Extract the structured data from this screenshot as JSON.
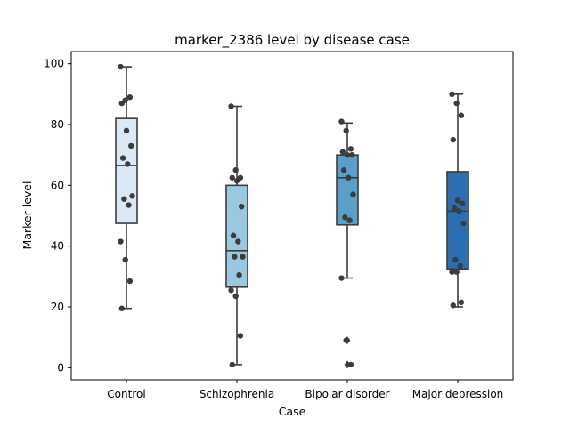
{
  "chart_data": {
    "type": "box",
    "title": "marker_2386 level by disease case",
    "xlabel": "Case",
    "ylabel": "Marker level",
    "ylim": [
      -4,
      104
    ],
    "yticks": [
      0,
      20,
      40,
      60,
      80,
      100
    ],
    "grid": false,
    "categories": [
      "Control",
      "Schizophrenia",
      "Bipolar disorder",
      "Major depression"
    ],
    "box_colors": [
      "#dbe9f6",
      "#9ac8e0",
      "#5b9ec9",
      "#2a6fb0"
    ],
    "boxes": [
      {
        "category": "Control",
        "whisker_low": 19.5,
        "q1": 47.5,
        "median": 66.5,
        "q3": 82,
        "whisker_high": 99,
        "outliers": []
      },
      {
        "category": "Schizophrenia",
        "whisker_low": 1,
        "q1": 26.5,
        "median": 38.5,
        "q3": 60,
        "whisker_high": 86,
        "outliers": []
      },
      {
        "category": "Bipolar disorder",
        "whisker_low": 29.5,
        "q1": 47,
        "median": 62.5,
        "q3": 70,
        "whisker_high": 80.5,
        "outliers": [
          9,
          1
        ]
      },
      {
        "category": "Major depression",
        "whisker_low": 20,
        "q1": 32.5,
        "median": 51.5,
        "q3": 64.5,
        "whisker_high": 90,
        "outliers": []
      }
    ],
    "points": [
      {
        "category": "Control",
        "values": [
          99,
          88,
          89,
          87,
          78,
          73,
          69,
          67,
          56.5,
          55.5,
          53.5,
          41.5,
          35.5,
          28.5,
          19.5
        ]
      },
      {
        "category": "Schizophrenia",
        "values": [
          86,
          65,
          62.5,
          62.5,
          61.5,
          53,
          43.5,
          41.5,
          36.5,
          36.5,
          30.5,
          25.5,
          23.5,
          10.5,
          1
        ]
      },
      {
        "category": "Bipolar disorder",
        "values": [
          81,
          78,
          72,
          71,
          70,
          70,
          65,
          62.5,
          57,
          49.5,
          48.5,
          29.5,
          9,
          1
        ]
      },
      {
        "category": "Major depression",
        "values": [
          90,
          87,
          83,
          75,
          55,
          54,
          52.5,
          51.5,
          47.5,
          35.5,
          33.5,
          31.5,
          31.5,
          21.5,
          20.5
        ]
      }
    ]
  }
}
